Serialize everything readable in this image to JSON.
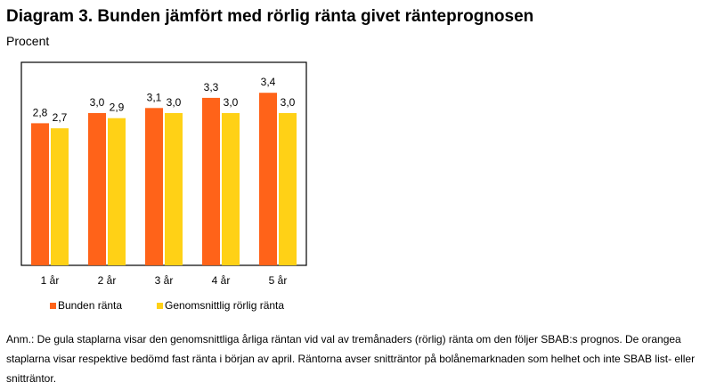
{
  "title": "Diagram 3. Bunden jämfört med rörlig ränta givet ränteprognosen",
  "subtitle": "Procent",
  "note": "Anm.: De gula staplarna visar den genomsnittliga årliga räntan vid val av tremånaders (rörlig) ränta om den följer SBAB:s prognos. De orangea staplarna visar respektive bedömd fast ränta i början av april. Räntorna avser snitträntor på bolånemarknaden som helhet och inte SBAB list- eller snitträntor.",
  "chart_data": {
    "type": "bar",
    "categories": [
      "1 år",
      "2 år",
      "3 år",
      "4 år",
      "5 år"
    ],
    "series": [
      {
        "name": "Bunden ränta",
        "values": [
          2.8,
          3.0,
          3.1,
          3.3,
          3.4
        ],
        "labels": [
          "2,8",
          "3,0",
          "3,1",
          "3,3",
          "3,4"
        ],
        "color": "#FF6319"
      },
      {
        "name": "Genomsnittlig rörlig ränta",
        "values": [
          2.7,
          2.9,
          3.0,
          3.0,
          3.0
        ],
        "labels": [
          "2,7",
          "2,9",
          "3,0",
          "3,0",
          "3,0"
        ],
        "color": "#FFD116"
      }
    ],
    "ylim": [
      0,
      4
    ],
    "grid": false,
    "legend": "bottom"
  }
}
